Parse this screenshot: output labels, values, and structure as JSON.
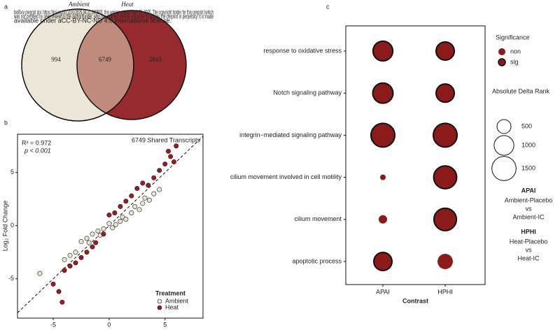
{
  "panel_labels": [
    "a",
    "b",
    "c"
  ],
  "notice": [
    "bioRxiv preprint doi: https://doi.org/10.1101/2025.04.21.649845; this version posted April 25, 2025. The copyright holder for this preprint (which",
    "was not certified by peer review) is the author/funder, who has granted bioRxiv a license to display the preprint in perpetuity. It is made",
    "available under aCC-BY-NC-ND 4.0 International license."
  ],
  "chart_data": [
    {
      "type": "venn",
      "sets": [
        "Ambient",
        "Heat"
      ],
      "colors": [
        "#ece6d8",
        "#962a2e",
        "#c08a7c"
      ],
      "regions": [
        "Ambient only",
        "Shared",
        "Heat only"
      ],
      "values": [
        994,
        6749,
        2843
      ]
    },
    {
      "type": "scatter",
      "y_label": "Log₂ Fold Change",
      "annotations": [
        "R² = 0.972",
        "p < 0.001",
        "6749 Shared Transcripts"
      ],
      "xlim": [
        -8.2,
        8.4
      ],
      "ylim": [
        -8.7,
        8.6
      ],
      "xticks": [
        -5,
        0,
        5
      ],
      "yticks": [
        -5,
        0,
        5
      ],
      "identity_line": true,
      "legend_title": "Treatment",
      "legend": "bottom-right",
      "series": [
        {
          "name": "Ambient",
          "color": "#e9e3d3",
          "x": [
            -6.2,
            -4,
            -3.5,
            -3,
            -2.5,
            -2,
            -1.8,
            -1.5,
            -1,
            -0.8,
            -0.5,
            0,
            0.3,
            0.6,
            1,
            1.2,
            1.5,
            2,
            2.3,
            2.7,
            3,
            3.2,
            3.6,
            4,
            4.5
          ],
          "values": [
            -4.5,
            -3.2,
            -2.8,
            -2.5,
            -1.5,
            -1.2,
            -1.6,
            -0.8,
            -0.5,
            -0.9,
            -0.3,
            0.2,
            -0.2,
            0.1,
            0.4,
            0.8,
            0.6,
            1.2,
            1.8,
            1.5,
            2.1,
            2.6,
            2.4,
            3,
            3.4
          ]
        },
        {
          "name": "Heat",
          "color": "#9b1c20",
          "x": [
            -5,
            -4.5,
            -4,
            -3.5,
            -3,
            -2.5,
            -2,
            -1.5,
            -1.2,
            -0.5,
            0,
            0.5,
            1,
            1.5,
            2,
            2.5,
            3,
            3.5,
            4,
            4.5,
            5,
            5.5,
            5.3,
            5.8,
            6,
            -4.2
          ],
          "values": [
            -5.5,
            -6.2,
            -4.2,
            -3.8,
            -3.5,
            -3,
            -2.5,
            -2,
            -1.6,
            -0.8,
            1,
            1.2,
            1.8,
            2.3,
            2.8,
            3.5,
            4,
            3.8,
            4.5,
            5.2,
            5.8,
            6.5,
            7,
            6,
            7.5,
            -7.2
          ]
        }
      ]
    },
    {
      "type": "dot",
      "x_label": "Contrast",
      "color": "#8b1a1a",
      "categories": [
        "response to oxidative stress",
        "Notch signaling pathway",
        "integrin−mediated signaling pathway",
        "cilium movement involved in cell motility",
        "cilium movement",
        "apoptotic process"
      ],
      "series": [
        {
          "name": "APAI",
          "values": [
            1000,
            1050,
            1450,
            80,
            180,
            850
          ],
          "significance": [
            "sig",
            "sig",
            "sig",
            "non",
            "non",
            "sig"
          ]
        },
        {
          "name": "HPHI",
          "values": [
            850,
            850,
            1450,
            1350,
            1300,
            600
          ],
          "significance": [
            "sig",
            "sig",
            "sig",
            "sig",
            "sig",
            "non"
          ]
        }
      ],
      "significance_title": "Significance",
      "significance_levels": [
        "non",
        "sig"
      ],
      "size_title": "Absolute Delta Rank",
      "size_ticks": [
        500,
        1000,
        1500
      ],
      "notes": [
        [
          "APAI",
          "Ambient-Placebo",
          "vs",
          "Ambient-IC"
        ],
        [
          "HPHI",
          "Heat-Placebo",
          "vs",
          "Heat-IC"
        ]
      ]
    }
  ]
}
